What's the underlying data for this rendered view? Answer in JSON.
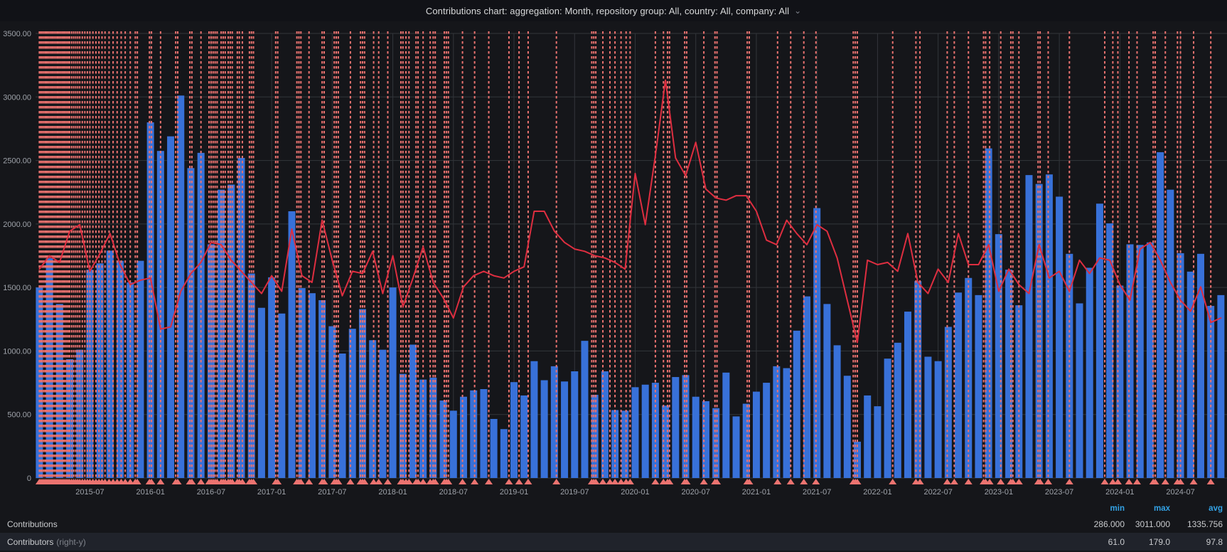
{
  "title": {
    "text": "Contributions chart: aggregation: Month, repository group: All, country: All, company: All",
    "chevron": "⌄"
  },
  "colors": {
    "background": "#111217",
    "panel_bg": "#15161a",
    "bars": "#3871d9",
    "line": "#de2e40",
    "annotation": "#ec7370",
    "grid": "#33363b",
    "axis_text": "#9fa3aa",
    "legend_header": "#33a2e5",
    "legend_text": "#c9cbce",
    "legend_dim": "#7f838b"
  },
  "chart_data": {
    "type": "bar",
    "subtype": "bar+line",
    "title": "Contributions chart",
    "xlabel": "",
    "ylabel": "",
    "grid": true,
    "legend_position": "bottom",
    "left_axis": {
      "min": 0,
      "max": 3500,
      "tick_values": [
        3500,
        3000,
        2500,
        2000,
        1500,
        1000,
        500,
        0
      ],
      "tick_labels": [
        "3500.00",
        "3000.00",
        "2500.00",
        "2000.00",
        "1500.00",
        "1000.00",
        "500.00",
        "0"
      ]
    },
    "right_axis": {
      "min": 0,
      "max": 200,
      "visible": false
    },
    "x_ticks": [
      "2015-07",
      "2016-01",
      "2016-07",
      "2017-01",
      "2017-07",
      "2018-01",
      "2018-07",
      "2019-01",
      "2019-07",
      "2020-01",
      "2020-07",
      "2021-01",
      "2021-07",
      "2022-01",
      "2022-07",
      "2023-01",
      "2023-07",
      "2024-01",
      "2024-07"
    ],
    "categories": [
      "2015-02",
      "2015-03",
      "2015-04",
      "2015-05",
      "2015-06",
      "2015-07",
      "2015-08",
      "2015-09",
      "2015-10",
      "2015-11",
      "2015-12",
      "2016-01",
      "2016-02",
      "2016-03",
      "2016-04",
      "2016-05",
      "2016-06",
      "2016-07",
      "2016-08",
      "2016-09",
      "2016-10",
      "2016-11",
      "2016-12",
      "2017-01",
      "2017-02",
      "2017-03",
      "2017-04",
      "2017-05",
      "2017-06",
      "2017-07",
      "2017-08",
      "2017-09",
      "2017-10",
      "2017-11",
      "2017-12",
      "2018-01",
      "2018-02",
      "2018-03",
      "2018-04",
      "2018-05",
      "2018-06",
      "2018-07",
      "2018-08",
      "2018-09",
      "2018-10",
      "2018-11",
      "2018-12",
      "2019-01",
      "2019-02",
      "2019-03",
      "2019-04",
      "2019-05",
      "2019-06",
      "2019-07",
      "2019-08",
      "2019-09",
      "2019-10",
      "2019-11",
      "2019-12",
      "2020-01",
      "2020-02",
      "2020-03",
      "2020-04",
      "2020-05",
      "2020-06",
      "2020-07",
      "2020-08",
      "2020-09",
      "2020-10",
      "2020-11",
      "2020-12",
      "2021-01",
      "2021-02",
      "2021-03",
      "2021-04",
      "2021-05",
      "2021-06",
      "2021-07",
      "2021-08",
      "2021-09",
      "2021-10",
      "2021-11",
      "2021-12",
      "2022-01",
      "2022-02",
      "2022-03",
      "2022-04",
      "2022-05",
      "2022-06",
      "2022-07",
      "2022-08",
      "2022-09",
      "2022-10",
      "2022-11",
      "2022-12",
      "2023-01",
      "2023-02",
      "2023-03",
      "2023-04",
      "2023-05",
      "2023-06",
      "2023-07",
      "2023-08",
      "2023-09",
      "2023-10",
      "2023-11",
      "2023-12",
      "2024-01",
      "2024-02",
      "2024-03",
      "2024-04",
      "2024-05",
      "2024-06",
      "2024-07",
      "2024-08",
      "2024-09",
      "2024-10",
      "2024-11"
    ],
    "series": [
      {
        "name": "Contributions",
        "type": "bar",
        "axis": "left",
        "color": "#3871d9",
        "min": 286.0,
        "max": 3011.0,
        "avg": 1335.756,
        "values": [
          1500,
          1730,
          1370,
          935,
          1010,
          1640,
          1690,
          1790,
          1710,
          1540,
          1710,
          2800,
          2575,
          2690,
          3011,
          2440,
          2560,
          1840,
          2270,
          2310,
          2520,
          1610,
          1340,
          1580,
          1295,
          2100,
          1495,
          1455,
          1400,
          1195,
          980,
          1175,
          1330,
          1085,
          1010,
          1500,
          820,
          1050,
          775,
          790,
          610,
          530,
          640,
          690,
          700,
          465,
          385,
          755,
          650,
          920,
          770,
          880,
          760,
          840,
          1080,
          655,
          840,
          535,
          530,
          715,
          735,
          750,
          570,
          795,
          810,
          640,
          605,
          550,
          830,
          485,
          585,
          680,
          750,
          880,
          865,
          1160,
          1430,
          2125,
          1370,
          1045,
          805,
          286,
          650,
          565,
          940,
          1065,
          1310,
          1550,
          955,
          920,
          1190,
          1460,
          1575,
          1440,
          2595,
          1920,
          1640,
          1360,
          2385,
          2315,
          2390,
          2215,
          1765,
          1375,
          1655,
          2160,
          2005,
          1515,
          1840,
          1835,
          1855,
          2565,
          2270,
          1770,
          1625,
          1765,
          1355,
          1440
        ]
      },
      {
        "name": "Contributors",
        "type": "line",
        "axis": "right",
        "color": "#de2e40",
        "min": 61.0,
        "max": 179.0,
        "avg": 97.8,
        "values": [
          94,
          100,
          97,
          111,
          114,
          93,
          101,
          110,
          96,
          87,
          89,
          90,
          67,
          68,
          84,
          92,
          97,
          106,
          105,
          98,
          93,
          88,
          83,
          91,
          84,
          112,
          91,
          88,
          116,
          98,
          82,
          93,
          92,
          102,
          83,
          100,
          77,
          90,
          104,
          88,
          81,
          72,
          86,
          91,
          93,
          91,
          90,
          93,
          95,
          120,
          120,
          111,
          106,
          103,
          102,
          100,
          99,
          97,
          94,
          137,
          114,
          145,
          179,
          144,
          136,
          151,
          130,
          126,
          125,
          127,
          127,
          120,
          107,
          105,
          116,
          110,
          105,
          114,
          111,
          99,
          80,
          61,
          98,
          96,
          97,
          93,
          110,
          88,
          83,
          94,
          88,
          110,
          96,
          96,
          105,
          84,
          94,
          87,
          83,
          105,
          90,
          93,
          84,
          98,
          92,
          99,
          98,
          87,
          80,
          103,
          106,
          98,
          88,
          80,
          75,
          86,
          70,
          72
        ]
      }
    ],
    "annotations": {
      "color": "#ec7370",
      "style": "dashed-vertical-with-triangle-marker",
      "positions_month_index": [
        0.0,
        0.15,
        0.3,
        0.45,
        0.6,
        0.75,
        0.9,
        1.05,
        1.2,
        1.35,
        1.5,
        1.65,
        1.8,
        1.95,
        2.1,
        2.25,
        2.4,
        2.55,
        2.7,
        2.85,
        3.0,
        3.2,
        3.4,
        3.6,
        3.8,
        4.0,
        4.25,
        4.5,
        4.75,
        5.0,
        5.3,
        5.6,
        5.9,
        6.2,
        6.5,
        6.9,
        7.3,
        7.7,
        8.1,
        8.5,
        9.0,
        9.5,
        9.7,
        10.9,
        11.1,
        12.0,
        13.5,
        13.7,
        14.9,
        15.1,
        16.0,
        16.8,
        17.0,
        17.2,
        17.4,
        17.6,
        18.0,
        18.2,
        18.4,
        18.7,
        18.9,
        19.1,
        19.6,
        19.8,
        20.1,
        20.8,
        21.0,
        21.2,
        23.4,
        23.6,
        25.5,
        25.7,
        25.9,
        26.7,
        28.0,
        28.2,
        29.2,
        29.4,
        29.6,
        30.8,
        31.8,
        32.0,
        32.2,
        33.1,
        33.6,
        34.5,
        35.8,
        36.0,
        36.3,
        36.6,
        37.3,
        37.5,
        38.0,
        38.7,
        39.0,
        39.2,
        40.1,
        40.3,
        40.5,
        41.9,
        43.1,
        44.5,
        46.5,
        47.5,
        48.4,
        51.2,
        54.7,
        54.9,
        55.1,
        55.8,
        56.5,
        57.0,
        57.6,
        58.1,
        58.5,
        61.0,
        61.8,
        62.2,
        62.4,
        63.9,
        64.1,
        65.8,
        66.9,
        67.1,
        70.1,
        70.3,
        73.1,
        74.4,
        75.7,
        76.9,
        80.6,
        80.8,
        81.0,
        84.5,
        86.8,
        87.2,
        89.9,
        90.6,
        92.0,
        93.5,
        93.7,
        94.1,
        95.2,
        96.2,
        96.4,
        97.0,
        98.9,
        99.1,
        99.9,
        102.0,
        105.5,
        106.3,
        106.8,
        107.9,
        108.7,
        110.3,
        110.5,
        111.5,
        112.7,
        113.0,
        114.3,
        116.0
      ]
    }
  },
  "legend": {
    "columns": [
      "min",
      "max",
      "avg"
    ],
    "rows": [
      {
        "label": "Contributions",
        "suffix": "",
        "min": "286.000",
        "max": "3011.000",
        "avg": "1335.756",
        "highlighted": false
      },
      {
        "label": "Contributors",
        "suffix": "(right-y)",
        "min": "61.0",
        "max": "179.0",
        "avg": "97.8",
        "highlighted": true
      }
    ]
  }
}
